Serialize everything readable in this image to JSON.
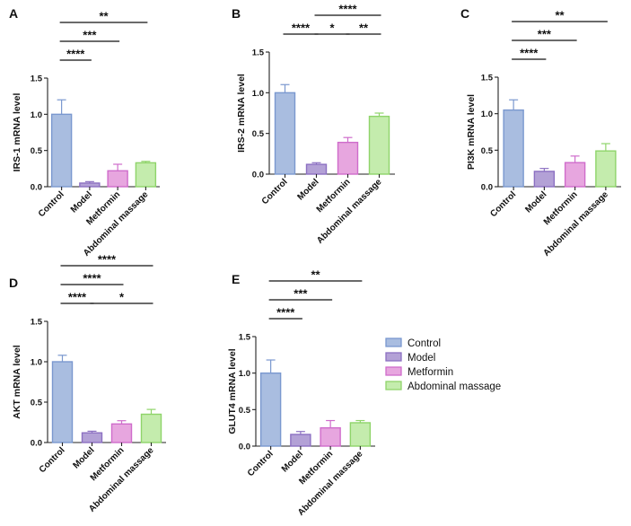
{
  "chart_data": [
    {
      "panel": "A",
      "type": "bar",
      "ylabel": "IRS-1 mRNA level",
      "ylim": [
        0,
        1.5
      ],
      "yticks": [
        "0.0",
        "0.5",
        "1.0",
        "1.5"
      ],
      "categories": [
        "Control",
        "Model",
        "Metformin",
        "Abdominal massage"
      ],
      "values": [
        1.0,
        0.05,
        0.22,
        0.33
      ],
      "errors": [
        0.2,
        0.02,
        0.09,
        0.02
      ],
      "significance": [
        {
          "from": 0,
          "to": 1,
          "label": "****"
        },
        {
          "from": 0,
          "to": 2,
          "label": "***"
        },
        {
          "from": 0,
          "to": 3,
          "label": "**"
        }
      ]
    },
    {
      "panel": "B",
      "type": "bar",
      "ylabel": "IRS-2 mRNA level",
      "ylim": [
        0,
        1.5
      ],
      "yticks": [
        "0.0",
        "0.5",
        "1.0",
        "1.5"
      ],
      "categories": [
        "Control",
        "Model",
        "Metformin",
        "Abdominal massage"
      ],
      "values": [
        1.0,
        0.12,
        0.39,
        0.71
      ],
      "errors": [
        0.1,
        0.02,
        0.06,
        0.04
      ],
      "significance": [
        {
          "from": 0,
          "to": 1,
          "label": "****"
        },
        {
          "from": 1,
          "to": 2,
          "label": "*"
        },
        {
          "from": 2,
          "to": 3,
          "label": "**"
        },
        {
          "from": 1,
          "to": 3,
          "label": "****"
        }
      ]
    },
    {
      "panel": "C",
      "type": "bar",
      "ylabel": "PI3K mRNA level",
      "ylim": [
        0,
        1.5
      ],
      "yticks": [
        "0.0",
        "0.5",
        "1.0",
        "1.5"
      ],
      "categories": [
        "Control",
        "Model",
        "Metformin",
        "Abdominal massage"
      ],
      "values": [
        1.05,
        0.21,
        0.33,
        0.49
      ],
      "errors": [
        0.14,
        0.04,
        0.09,
        0.1
      ],
      "significance": [
        {
          "from": 0,
          "to": 1,
          "label": "****"
        },
        {
          "from": 0,
          "to": 2,
          "label": "***"
        },
        {
          "from": 0,
          "to": 3,
          "label": "**"
        }
      ]
    },
    {
      "panel": "D",
      "type": "bar",
      "ylabel": "AKT mRNA level",
      "ylim": [
        0,
        1.5
      ],
      "yticks": [
        "0.0",
        "0.5",
        "1.0",
        "1.5"
      ],
      "categories": [
        "Control",
        "Model",
        "Metformin",
        "Abdominal massage"
      ],
      "values": [
        1.0,
        0.12,
        0.23,
        0.35
      ],
      "errors": [
        0.08,
        0.02,
        0.04,
        0.06
      ],
      "significance": [
        {
          "from": 0,
          "to": 1,
          "label": "****"
        },
        {
          "from": 0,
          "to": 2,
          "label": "****"
        },
        {
          "from": 0,
          "to": 3,
          "label": "****"
        },
        {
          "from": 1,
          "to": 3,
          "label": "*"
        }
      ]
    },
    {
      "panel": "E",
      "type": "bar",
      "ylabel": "GLUT4 mRNA level",
      "ylim": [
        0,
        1.5
      ],
      "yticks": [
        "0.0",
        "0.5",
        "1.0",
        "1.5"
      ],
      "categories": [
        "Control",
        "Model",
        "Metformin",
        "Abdominal massage"
      ],
      "values": [
        1.0,
        0.16,
        0.25,
        0.32
      ],
      "errors": [
        0.18,
        0.04,
        0.1,
        0.03
      ],
      "significance": [
        {
          "from": 0,
          "to": 1,
          "label": "****"
        },
        {
          "from": 0,
          "to": 2,
          "label": "***"
        },
        {
          "from": 0,
          "to": 3,
          "label": "**"
        }
      ]
    }
  ],
  "legend": {
    "items": [
      "Control",
      "Model",
      "Metformin",
      "Abdominal massage"
    ]
  },
  "colors": {
    "fills": [
      "#a9bde0",
      "#b3a1d6",
      "#e7a6df",
      "#c4ecad"
    ],
    "edges": [
      "#7a98cf",
      "#8c70c2",
      "#cf6ccb",
      "#8fd46a"
    ]
  }
}
